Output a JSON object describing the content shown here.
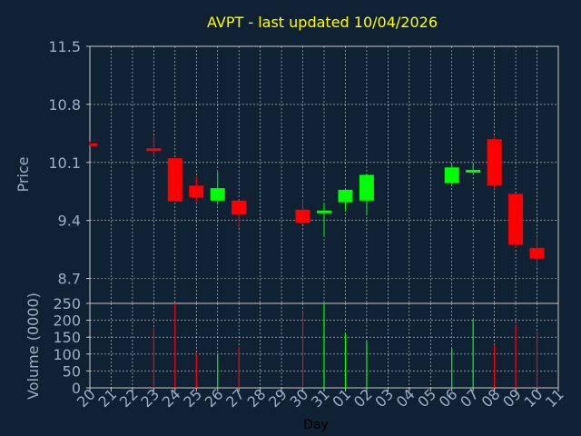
{
  "title": "AVPT - last updated 10/04/2026",
  "colors": {
    "background": "#0f2133",
    "title": "#ffff00",
    "axis_text": "#9ab0c8",
    "day_label": "#000000",
    "up": "#00ff00",
    "down": "#ff0000",
    "grid": "#ffffff"
  },
  "chart_data": [
    {
      "type": "candlestick",
      "ylabel": "Price",
      "ylim": [
        8.4,
        11.5
      ],
      "yticks": [
        8.7,
        9.4,
        10.1,
        10.8,
        11.5
      ],
      "grid": true,
      "categories": [
        "20",
        "21",
        "22",
        "23",
        "24",
        "25",
        "26",
        "27",
        "28",
        "29",
        "30",
        "31",
        "01",
        "02",
        "03",
        "04",
        "05",
        "06",
        "07",
        "08",
        "09",
        "10",
        "11"
      ],
      "candles": [
        {
          "x": "20",
          "open": 10.33,
          "high": 10.35,
          "low": 10.31,
          "close": 10.31
        },
        {
          "x": "23",
          "open": 10.27,
          "high": 10.42,
          "low": 10.16,
          "close": 10.24
        },
        {
          "x": "24",
          "open": 10.15,
          "high": 10.15,
          "low": 9.63,
          "close": 9.63
        },
        {
          "x": "25",
          "open": 9.82,
          "high": 9.93,
          "low": 9.61,
          "close": 9.68
        },
        {
          "x": "26",
          "open": 9.64,
          "high": 9.99,
          "low": 9.59,
          "close": 9.79
        },
        {
          "x": "27",
          "open": 9.64,
          "high": 9.64,
          "low": 9.31,
          "close": 9.47
        },
        {
          "x": "30",
          "open": 9.53,
          "high": 9.66,
          "low": 9.36,
          "close": 9.37
        },
        {
          "x": "31",
          "open": 9.49,
          "high": 9.61,
          "low": 9.22,
          "close": 9.52
        },
        {
          "x": "01",
          "open": 9.62,
          "high": 9.75,
          "low": 9.51,
          "close": 9.77
        },
        {
          "x": "02",
          "open": 9.64,
          "high": 9.96,
          "low": 9.46,
          "close": 9.95
        },
        {
          "x": "06",
          "open": 9.85,
          "high": 10.08,
          "low": 9.81,
          "close": 10.04
        },
        {
          "x": "07",
          "open": 9.99,
          "high": 10.09,
          "low": 9.96,
          "close": 10.01
        },
        {
          "x": "08",
          "open": 10.38,
          "high": 10.41,
          "low": 9.78,
          "close": 9.82
        },
        {
          "x": "09",
          "open": 9.72,
          "high": 9.72,
          "low": 9.07,
          "close": 9.11
        },
        {
          "x": "10",
          "open": 9.07,
          "high": 9.21,
          "low": 8.83,
          "close": 8.94
        }
      ]
    },
    {
      "type": "bar",
      "xlabel": "Day",
      "ylabel": "Volume (0000)",
      "ylim": [
        0,
        250
      ],
      "yticks": [
        0,
        50,
        100,
        150,
        200,
        250
      ],
      "grid": true,
      "categories": [
        "20",
        "21",
        "22",
        "23",
        "24",
        "25",
        "26",
        "27",
        "28",
        "29",
        "30",
        "31",
        "01",
        "02",
        "03",
        "04",
        "05",
        "06",
        "07",
        "08",
        "09",
        "10",
        "11"
      ],
      "bars": [
        {
          "x": "23",
          "value": 177,
          "direction": "down"
        },
        {
          "x": "24",
          "value": 250,
          "direction": "down"
        },
        {
          "x": "25",
          "value": 103,
          "direction": "down"
        },
        {
          "x": "26",
          "value": 97,
          "direction": "up"
        },
        {
          "x": "27",
          "value": 122,
          "direction": "down"
        },
        {
          "x": "30",
          "value": 228,
          "direction": "down"
        },
        {
          "x": "31",
          "value": 250,
          "direction": "up"
        },
        {
          "x": "01",
          "value": 162,
          "direction": "up"
        },
        {
          "x": "02",
          "value": 138,
          "direction": "up"
        },
        {
          "x": "06",
          "value": 116,
          "direction": "up"
        },
        {
          "x": "07",
          "value": 202,
          "direction": "up"
        },
        {
          "x": "08",
          "value": 127,
          "direction": "down"
        },
        {
          "x": "09",
          "value": 186,
          "direction": "down"
        },
        {
          "x": "10",
          "value": 166,
          "direction": "down"
        }
      ]
    }
  ]
}
